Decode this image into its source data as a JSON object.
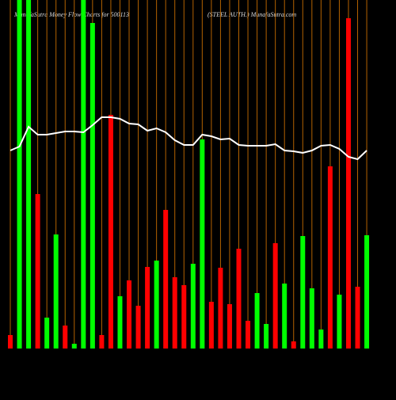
{
  "chart_data": {
    "type": "bar",
    "title": "MunafaSutra  Money Flow  Charts for 500113",
    "subtitle": "(STEEL  AUTH.) MunafaSutra.com",
    "categories": [
      null,
      null,
      null,
      null,
      null,
      null,
      null,
      null,
      null,
      null,
      null,
      null,
      null,
      null,
      null,
      null,
      null,
      null,
      null,
      null,
      null,
      null,
      null,
      null,
      null,
      null,
      null,
      null,
      null,
      null,
      null,
      null,
      null,
      null,
      null,
      null,
      null,
      null,
      null,
      null
    ],
    "values": [
      17,
      440,
      440,
      195,
      39,
      144,
      29,
      6,
      440,
      411,
      17,
      295,
      66,
      86,
      54,
      103,
      111,
      175,
      90,
      80,
      107,
      264,
      59,
      102,
      56,
      126,
      35,
      70,
      31,
      133,
      82,
      9,
      142,
      76,
      24,
      230,
      68,
      417,
      78,
      143
    ],
    "colors": [
      "#ff0000",
      "#00ff00",
      "#00ff00",
      "#ff0000",
      "#00ff00",
      "#00ff00",
      "#ff0000",
      "#00ff00",
      "#00ff00",
      "#00ff00",
      "#ff0000",
      "#ff0000",
      "#00ff00",
      "#ff0000",
      "#ff0000",
      "#ff0000",
      "#00ff00",
      "#ff0000",
      "#ff0000",
      "#ff0000",
      "#00ff00",
      "#00ff00",
      "#ff0000",
      "#ff0000",
      "#ff0000",
      "#ff0000",
      "#ff0000",
      "#00ff00",
      "#00ff00",
      "#ff0000",
      "#00ff00",
      "#ff0000",
      "#00ff00",
      "#00ff00",
      "#00ff00",
      "#ff0000",
      "#00ff00",
      "#ff0000",
      "#ff0000",
      "#00ff00"
    ],
    "line": {
      "color": "#ffffff",
      "values": [
        250,
        255,
        280,
        270,
        270,
        272,
        274,
        274,
        273,
        282,
        292,
        292,
        290,
        284,
        283,
        275,
        278,
        273,
        263,
        257,
        257,
        270,
        268,
        264,
        265,
        257,
        256,
        256,
        256,
        258,
        250,
        249,
        247,
        250,
        256,
        257,
        252,
        242,
        239,
        250
      ]
    },
    "ylim": [
      0,
      440
    ],
    "gridline_color": "#b36200"
  }
}
